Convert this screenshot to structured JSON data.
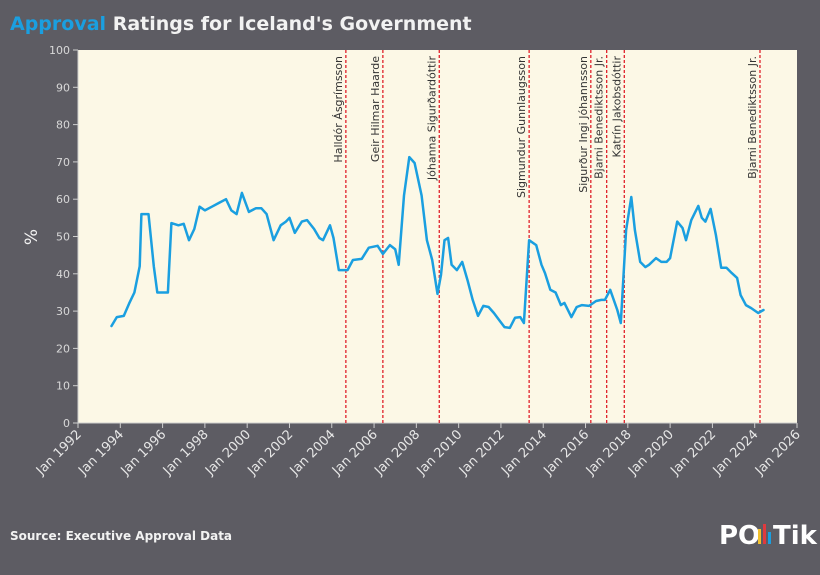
{
  "chart_data": {
    "type": "line",
    "title_highlight": "Approval",
    "title": "Ratings for Iceland's Government",
    "ylabel": "%",
    "source": "Source: Executive Approval Data",
    "logo": {
      "left": "PO",
      "right": "Tik"
    },
    "color": "#1a9fe0",
    "highlight_color": "#1a9fe0",
    "x": [
      "1993-08",
      "1993-11",
      "1994-03",
      "1994-06",
      "1994-09",
      "1994-12",
      "1995-01",
      "1995-05",
      "1995-08",
      "1995-10",
      "1996-04",
      "1996-06",
      "1996-10",
      "1997-01",
      "1997-04",
      "1997-07",
      "1997-10",
      "1998-01",
      "1998-05",
      "1998-09",
      "1999-01",
      "1999-04",
      "1999-07",
      "1999-10",
      "2000-02",
      "2000-06",
      "2000-09",
      "2000-12",
      "2001-04",
      "2001-08",
      "2001-11",
      "2002-01",
      "2002-04",
      "2002-08",
      "2002-11",
      "2003-03",
      "2003-06",
      "2003-08",
      "2003-12",
      "2004-02",
      "2004-05",
      "2004-10",
      "2005-01",
      "2005-06",
      "2005-10",
      "2006-03",
      "2006-06",
      "2006-10",
      "2007-01",
      "2007-03",
      "2007-06",
      "2007-09",
      "2007-12",
      "2008-04",
      "2008-07",
      "2008-10",
      "2009-01",
      "2009-03",
      "2009-05",
      "2009-07",
      "2009-09",
      "2009-12",
      "2010-03",
      "2010-06",
      "2010-09",
      "2010-12",
      "2011-03",
      "2011-06",
      "2011-09",
      "2011-12",
      "2012-03",
      "2012-06",
      "2012-09",
      "2012-12",
      "2013-02",
      "2013-05",
      "2013-09",
      "2013-12",
      "2014-02",
      "2014-05",
      "2014-08",
      "2014-11",
      "2015-01",
      "2015-05",
      "2015-08",
      "2015-11",
      "2016-03",
      "2016-07",
      "2016-10",
      "2016-12",
      "2017-03",
      "2017-07",
      "2017-09",
      "2017-12",
      "2018-03",
      "2018-05",
      "2018-08",
      "2018-11",
      "2019-01",
      "2019-05",
      "2019-08",
      "2019-11",
      "2020-01",
      "2020-05",
      "2020-08",
      "2020-10",
      "2021-01",
      "2021-05",
      "2021-07",
      "2021-09",
      "2021-12",
      "2022-03",
      "2022-06",
      "2022-09",
      "2022-12",
      "2023-03",
      "2023-05",
      "2023-08",
      "2023-11",
      "2024-03",
      "2024-06"
    ],
    "values": [
      26,
      28.4,
      28.7,
      32,
      35,
      42,
      56,
      56,
      42,
      35,
      35,
      53.6,
      53,
      53.4,
      49,
      52,
      58,
      57,
      58,
      59,
      60,
      57,
      56,
      61.7,
      56.6,
      57.6,
      57.6,
      56,
      49,
      53,
      54,
      55,
      51,
      54,
      54.4,
      52,
      49.6,
      49,
      53,
      49.6,
      41,
      41,
      43.7,
      44,
      47,
      47.5,
      45.3,
      47.7,
      46.6,
      42.4,
      61,
      71.3,
      69.7,
      61,
      49,
      43.7,
      34.6,
      39.7,
      49,
      49.6,
      42.4,
      41,
      43.2,
      38.3,
      33,
      28.7,
      31.4,
      31.1,
      29.5,
      27.6,
      25.7,
      25.5,
      28.2,
      28.4,
      26.8,
      49,
      47.7,
      42.4,
      40.2,
      35.7,
      35,
      31.6,
      32.2,
      28.4,
      31.1,
      31.6,
      31.4,
      32.7,
      33,
      33,
      35.7,
      30.3,
      26.8,
      51.7,
      60.6,
      51.7,
      43.2,
      41.8,
      42.4,
      44.2,
      43.2,
      43.2,
      44.2,
      54,
      52.3,
      49,
      54.4,
      58.2,
      55,
      54,
      57.4,
      50.4,
      41.6,
      41.6,
      40.2,
      38.9,
      34.3,
      31.6,
      30.8,
      29.5,
      30.3
    ],
    "xlim": [
      "1992-01",
      "2026-01"
    ],
    "xticks": [
      {
        "value": "1992-01",
        "label": "Jan 1992"
      },
      {
        "value": "1994-01",
        "label": "Jan 1994"
      },
      {
        "value": "1996-01",
        "label": "Jan 1996"
      },
      {
        "value": "1998-01",
        "label": "Jan 1998"
      },
      {
        "value": "2000-01",
        "label": "Jan 2000"
      },
      {
        "value": "2002-01",
        "label": "Jan 2002"
      },
      {
        "value": "2004-01",
        "label": "Jan 2004"
      },
      {
        "value": "2006-01",
        "label": "Jan 2006"
      },
      {
        "value": "2008-01",
        "label": "Jan 2008"
      },
      {
        "value": "2010-01",
        "label": "Jan 2010"
      },
      {
        "value": "2012-01",
        "label": "Jan 2012"
      },
      {
        "value": "2014-01",
        "label": "Jan 2014"
      },
      {
        "value": "2016-01",
        "label": "Jan 2016"
      },
      {
        "value": "2018-01",
        "label": "Jan 2018"
      },
      {
        "value": "2020-01",
        "label": "Jan 2020"
      },
      {
        "value": "2022-01",
        "label": "Jan 2022"
      },
      {
        "value": "2024-01",
        "label": "Jan 2024"
      },
      {
        "value": "2026-01",
        "label": "Jan 2026"
      }
    ],
    "ylim": [
      0,
      100
    ],
    "yticks": [
      0,
      10,
      20,
      30,
      40,
      50,
      60,
      70,
      80,
      90,
      100
    ],
    "grid": false,
    "annotation_color": "#e0202a",
    "annotations": [
      {
        "x": "2004-09",
        "label": "Halldór Ásgrímsson"
      },
      {
        "x": "2006-06",
        "label": "Geir Hilmar Haarde"
      },
      {
        "x": "2009-02",
        "label": "Jóhanna Sigurðardóttir"
      },
      {
        "x": "2013-05",
        "label": "Sigmundur Gunnlaugsson"
      },
      {
        "x": "2016-04",
        "label": "Sigurður Ingi Jóhannsson"
      },
      {
        "x": "2017-01",
        "label": "Bjarni Benediktsson Jr."
      },
      {
        "x": "2017-11",
        "label": "Katrín Jakobsdóttir"
      },
      {
        "x": "2024-04",
        "label": "Bjarni Benediktsson Jr."
      }
    ]
  }
}
